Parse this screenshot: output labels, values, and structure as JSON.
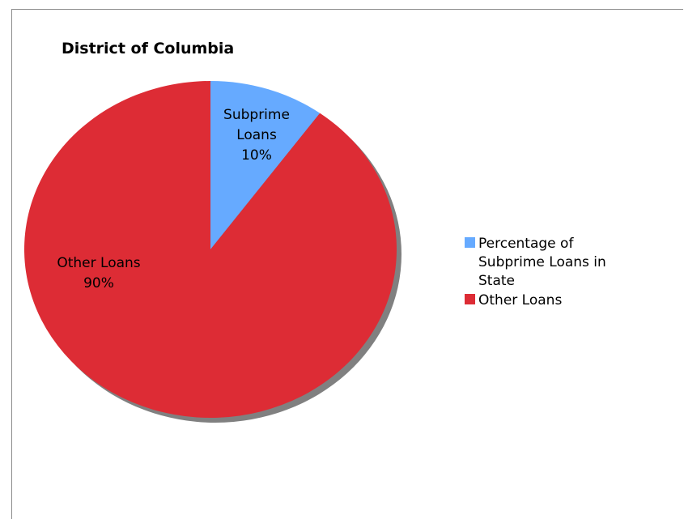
{
  "chart_data": {
    "type": "pie",
    "title": "District of Columbia",
    "slices": [
      {
        "label": "Percentage of Subprime Loans in State",
        "value": 10,
        "color": "#66aaff",
        "data_label_lines": [
          "Subprime",
          "Loans",
          "10%"
        ]
      },
      {
        "label": "Other Loans",
        "value": 90,
        "color": "#dd2c35",
        "data_label_lines": [
          "Other Loans",
          "90%"
        ]
      }
    ],
    "legend_position": "right",
    "shadow_color": "#808080"
  }
}
